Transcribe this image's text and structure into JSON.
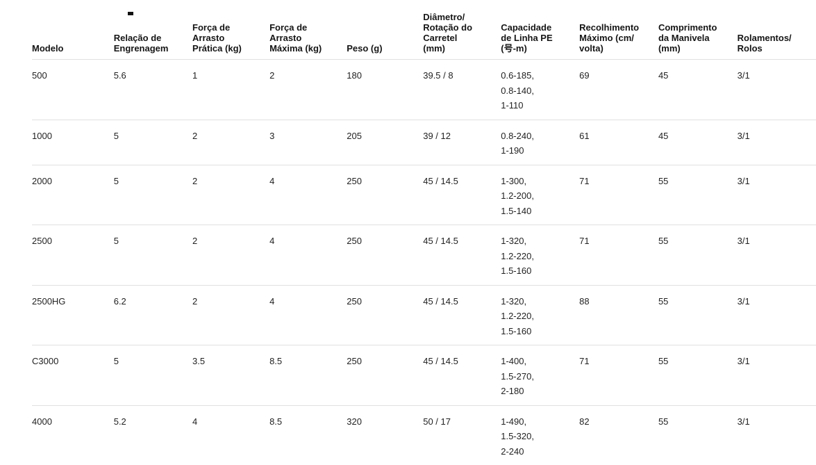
{
  "page": {
    "background_color": "#ffffff",
    "text_color": "#1f1f1f",
    "header_text_color": "#151515",
    "divider_color": "#e0e0e0"
  },
  "table": {
    "columns": [
      {
        "key": "modelo",
        "label": "Modelo"
      },
      {
        "key": "relacao-engrenagem",
        "label": "Relação de\nEngrenagem"
      },
      {
        "key": "forca-arrasto-pratica",
        "label": "Força de\nArrasto\nPrática (kg)"
      },
      {
        "key": "forca-arrasto-maxima",
        "label": "Força de\nArrasto\nMáxima (kg)"
      },
      {
        "key": "peso",
        "label": "Peso (g)"
      },
      {
        "key": "diametro-rotacao-carretel",
        "label": "Diâmetro/\nRotação do\nCarretel\n(mm)"
      },
      {
        "key": "capacidade-linha-pe",
        "label": "Capacidade\nde Linha PE\n(号-m)"
      },
      {
        "key": "recolhimento-maximo",
        "label": "Recolhimento\nMáximo (cm/\nvolta)"
      },
      {
        "key": "comprimento-manivela",
        "label": "Comprimento\nda Manivela\n(mm)"
      },
      {
        "key": "rolamentos-rolos",
        "label": "Rolamentos/\nRolos"
      }
    ],
    "rows": [
      {
        "cells": [
          "500",
          "5.6",
          "1",
          "2",
          "180",
          "39.5 / 8",
          "0.6-185,\n0.8-140,\n1-110",
          "69",
          "45",
          "3/1"
        ]
      },
      {
        "cells": [
          "1000",
          "5",
          "2",
          "3",
          "205",
          "39 / 12",
          "0.8-240,\n1-190",
          "61",
          "45",
          "3/1"
        ]
      },
      {
        "cells": [
          "2000",
          "5",
          "2",
          "4",
          "250",
          "45 / 14.5",
          "1-300,\n1.2-200,\n1.5-140",
          "71",
          "55",
          "3/1"
        ]
      },
      {
        "cells": [
          "2500",
          "5",
          "2",
          "4",
          "250",
          "45 / 14.5",
          "1-320,\n1.2-220,\n1.5-160",
          "71",
          "55",
          "3/1"
        ]
      },
      {
        "cells": [
          "2500HG",
          "6.2",
          "2",
          "4",
          "250",
          "45 / 14.5",
          "1-320,\n1.2-220,\n1.5-160",
          "88",
          "55",
          "3/1"
        ]
      },
      {
        "cells": [
          "C3000",
          "5",
          "3.5",
          "8.5",
          "250",
          "45 / 14.5",
          "1-400,\n1.5-270,\n2-180",
          "71",
          "55",
          "3/1"
        ]
      },
      {
        "cells": [
          "4000",
          "5.2",
          "4",
          "8.5",
          "320",
          "50 / 17",
          "1-490,\n1.5-320,\n2-240",
          "82",
          "55",
          "3/1"
        ]
      }
    ]
  }
}
